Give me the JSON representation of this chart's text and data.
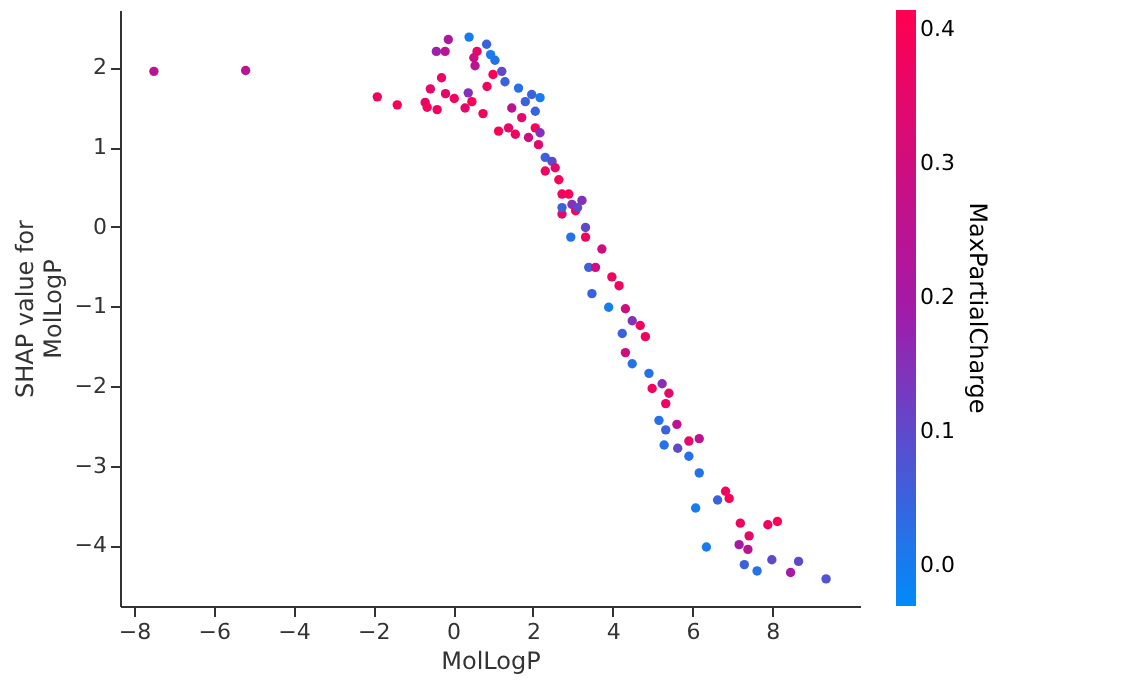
{
  "chart_data": {
    "type": "scatter",
    "xlabel": "MolLogP",
    "ylabel": "SHAP value for\nMolLogP",
    "clabel": "MaxPartialCharge",
    "x": [
      -7.5,
      -5.2,
      -1.9,
      -1.4,
      -0.7,
      -0.65,
      -0.4,
      -0.57,
      -0.29,
      -0.2,
      -0.42,
      -0.12,
      0.4,
      0.6,
      0.52,
      0.55,
      0.84,
      0.94,
      1.05,
      -0.19,
      0.03,
      0.3,
      0.38,
      0.47,
      0.75,
      0.85,
      1.0,
      1.22,
      1.3,
      1.14,
      1.39,
      1.47,
      1.64,
      1.81,
      1.97,
      2.18,
      2.06,
      1.72,
      1.56,
      1.89,
      2.06,
      2.18,
      2.14,
      2.31,
      2.48,
      2.56,
      2.31,
      2.65,
      2.73,
      2.9,
      2.98,
      2.73,
      3.07,
      2.95,
      3.23,
      3.32,
      2.73,
      3.12,
      3.32,
      3.73,
      3.4,
      3.57,
      3.98,
      4.16,
      3.48,
      3.9,
      4.32,
      4.49,
      4.69,
      4.24,
      4.82,
      4.32,
      4.49,
      4.91,
      5.24,
      5.41,
      4.99,
      5.33,
      5.16,
      5.61,
      5.33,
      5.29,
      5.63,
      5.91,
      6.17,
      5.91,
      6.17,
      6.08,
      6.63,
      6.83,
      6.92,
      7.2,
      7.42,
      7.89,
      8.13,
      7.39,
      7.17,
      6.35,
      7.3,
      7.62,
      7.99,
      8.66,
      8.46,
      9.35
    ],
    "values": [
      1.95,
      1.96,
      1.63,
      1.53,
      1.56,
      1.5,
      1.47,
      1.73,
      1.87,
      2.2,
      2.2,
      2.35,
      2.38,
      2.2,
      2.12,
      2.02,
      2.29,
      2.16,
      2.09,
      1.67,
      1.61,
      1.49,
      1.68,
      1.57,
      1.42,
      1.76,
      1.91,
      1.95,
      1.82,
      1.2,
      1.24,
      1.49,
      1.74,
      1.57,
      1.66,
      1.62,
      1.45,
      1.37,
      1.16,
      1.12,
      1.24,
      1.18,
      1.03,
      0.87,
      0.82,
      0.74,
      0.7,
      0.59,
      0.41,
      0.41,
      0.28,
      0.16,
      0.2,
      -0.13,
      0.33,
      -0.01,
      0.24,
      0.24,
      -0.13,
      -0.28,
      -0.51,
      -0.51,
      -0.63,
      -0.74,
      -0.84,
      -1.01,
      -1.03,
      -1.18,
      -1.24,
      -1.34,
      -1.38,
      -1.58,
      -1.72,
      -1.84,
      -1.97,
      -2.09,
      -2.03,
      -2.22,
      -2.43,
      -2.48,
      -2.55,
      -2.74,
      -2.78,
      -2.69,
      -2.66,
      -2.88,
      -3.09,
      -3.53,
      -3.43,
      -3.32,
      -3.41,
      -3.72,
      -3.88,
      -3.74,
      -3.7,
      -4.05,
      -3.99,
      -4.02,
      -4.24,
      -4.32,
      -4.18,
      -4.2,
      -4.34,
      -4.42
    ],
    "cvalues": [
      0.25,
      0.25,
      0.38,
      0.4,
      0.35,
      0.4,
      0.38,
      0.35,
      0.37,
      0.25,
      0.18,
      0.22,
      0.0,
      0.35,
      0.3,
      0.25,
      0.05,
      0.0,
      0.02,
      0.35,
      0.38,
      0.35,
      0.15,
      0.4,
      0.38,
      0.38,
      0.4,
      0.1,
      0.05,
      0.4,
      0.35,
      0.25,
      0.02,
      0.05,
      0.05,
      0.0,
      0.05,
      0.35,
      0.38,
      0.3,
      0.4,
      0.15,
      0.35,
      0.05,
      0.1,
      0.35,
      0.38,
      0.4,
      0.38,
      0.4,
      0.15,
      0.35,
      0.4,
      0.02,
      0.15,
      0.1,
      0.05,
      0.1,
      0.38,
      0.3,
      0.05,
      0.3,
      0.38,
      0.38,
      0.05,
      0.0,
      0.3,
      0.15,
      0.38,
      0.05,
      0.38,
      0.3,
      0.02,
      0.02,
      0.15,
      0.35,
      0.38,
      0.38,
      0.02,
      0.25,
      0.05,
      0.02,
      0.1,
      0.35,
      0.25,
      0.02,
      0.02,
      0.0,
      0.05,
      0.38,
      0.4,
      0.38,
      0.35,
      0.38,
      0.4,
      0.25,
      0.2,
      0.0,
      0.05,
      0.02,
      0.1,
      0.1,
      0.2,
      0.08
    ],
    "clim": [
      -0.03,
      0.415
    ],
    "cticks": [
      {
        "value": 0,
        "label": "0.0"
      },
      {
        "value": 0.1,
        "label": "0.1"
      },
      {
        "value": 0.2,
        "label": "0.2"
      },
      {
        "value": 0.3,
        "label": "0.3"
      },
      {
        "value": 0.4,
        "label": "0.4"
      }
    ],
    "xlim": [
      -8.35,
      10.2
    ],
    "xticks": [
      -8,
      -6,
      -4,
      -2,
      0,
      2,
      4,
      6,
      8
    ],
    "ylim": [
      -4.76,
      2.72
    ],
    "yticks": [
      -4,
      -3,
      -2,
      -1,
      0,
      1,
      2
    ],
    "grid": false
  }
}
